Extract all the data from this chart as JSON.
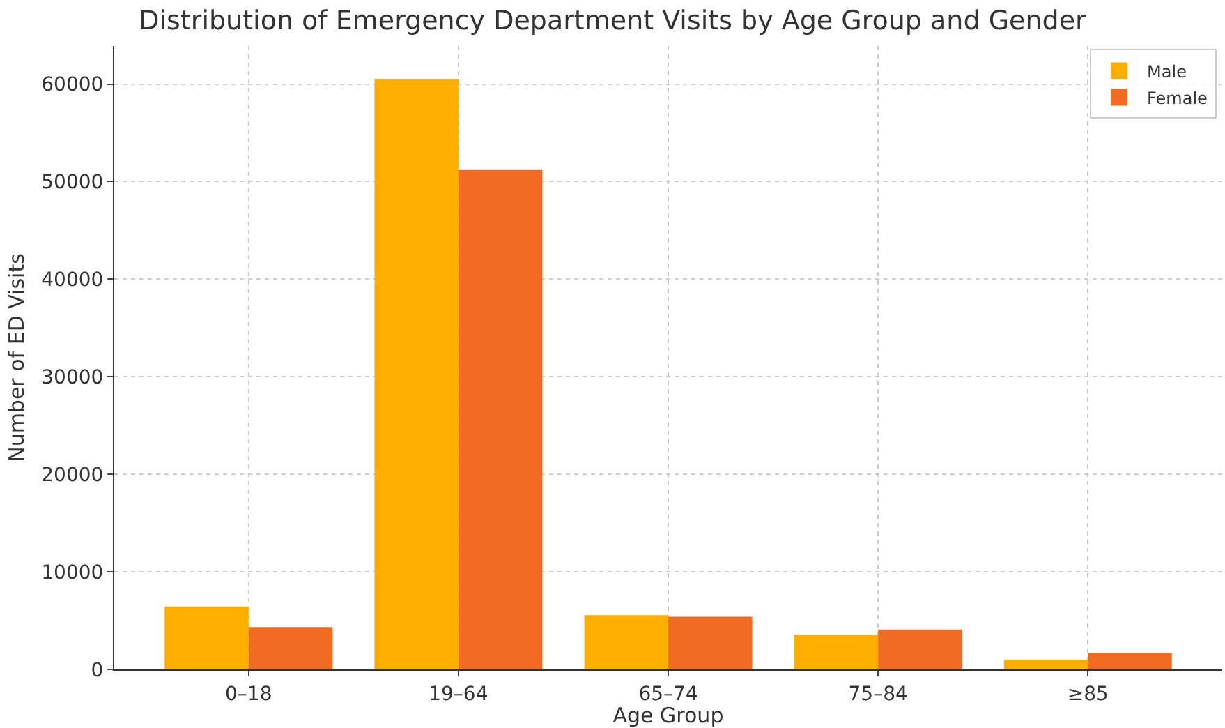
{
  "chart_data": {
    "type": "bar",
    "title": "Distribution of Emergency Department Visits by Age Group and Gender",
    "xlabel": "Age Group",
    "ylabel": "Number of ED Visits",
    "categories": [
      "0–18",
      "19–64",
      "65–74",
      "75–84",
      "≥85"
    ],
    "series": [
      {
        "name": "Male",
        "color": "#ffae00",
        "values": [
          6450,
          60500,
          5550,
          3550,
          1000
        ]
      },
      {
        "name": "Female",
        "color": "#f36b22",
        "values": [
          4350,
          51200,
          5400,
          4100,
          1700
        ]
      }
    ],
    "ylim": [
      0,
      63900
    ],
    "yticks": [
      0,
      10000,
      20000,
      30000,
      40000,
      50000,
      60000
    ],
    "grid": true,
    "legend": "top right"
  }
}
